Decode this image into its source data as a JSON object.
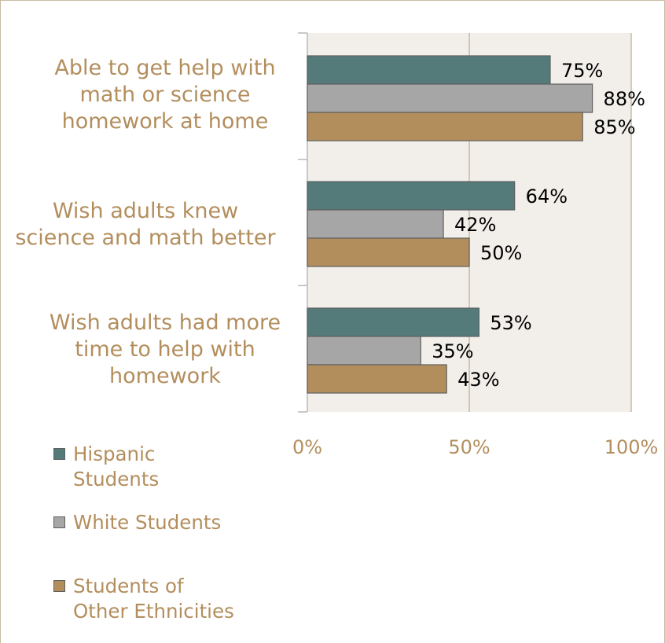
{
  "chart_data": {
    "type": "bar",
    "orientation": "horizontal",
    "categories": [
      "Able to get help with\nmath or science\nhomework at home",
      "Wish adults knew\nscience and math better",
      "Wish adults had more\ntime to help with\nhomework"
    ],
    "series": [
      {
        "name": "Hispanic\nStudents",
        "values": [
          75,
          64,
          53
        ],
        "color": "#547a7a"
      },
      {
        "name": "White Students",
        "values": [
          88,
          42,
          35
        ],
        "color": "#a6a6a6"
      },
      {
        "name": "Students of\nOther Ethnicities",
        "values": [
          85,
          50,
          43
        ],
        "color": "#b38e5d"
      }
    ],
    "data_labels": [
      [
        "75%",
        "64%",
        "53%"
      ],
      [
        "88%",
        "42%",
        "35%"
      ],
      [
        "85%",
        "50%",
        "43%"
      ]
    ],
    "x_ticks": [
      "0%",
      "50%",
      "100%"
    ],
    "xlim": [
      0,
      100
    ],
    "legend_position": "bottom-left",
    "plot_background": "#f2eeea",
    "grid": true
  }
}
